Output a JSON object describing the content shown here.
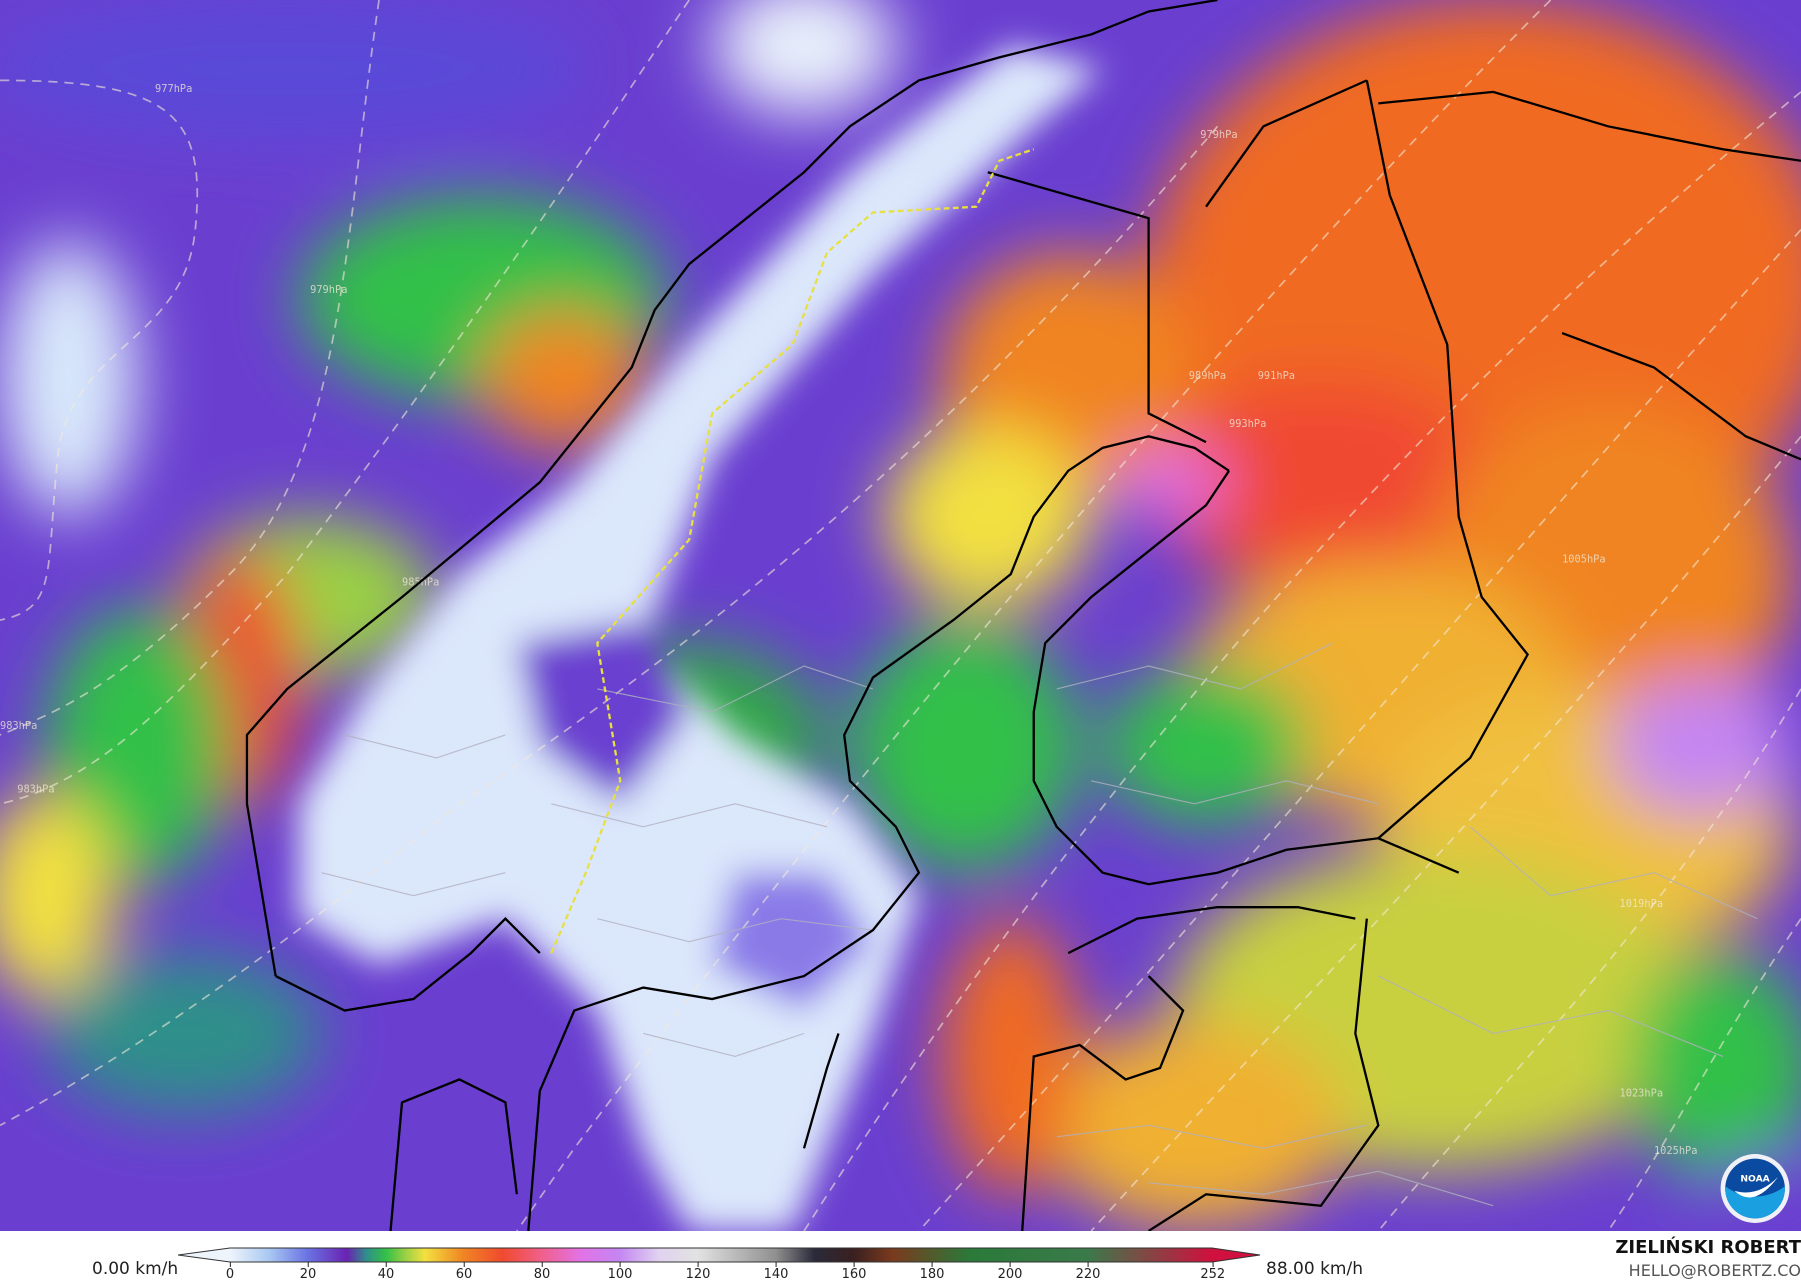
{
  "map": {
    "isobar_labels": [
      "977hPa",
      "979hPa",
      "979hPa",
      "983hPa",
      "983hPa",
      "985hPa",
      "989hPa",
      "991hPa",
      "993hPa",
      "1005hPa",
      "1019hPa",
      "1023hPa",
      "1025hPa"
    ],
    "logo": "NOAA"
  },
  "legend": {
    "min_label": "0.00 km/h",
    "max_label": "88.00 km/h",
    "ticks": [
      "0",
      "20",
      "40",
      "60",
      "80",
      "100",
      "120",
      "140",
      "160",
      "180",
      "200",
      "220",
      "252"
    ],
    "colors": {
      "0": "#eef4fc",
      "10": "#a9c8f2",
      "20": "#6a72e2",
      "30": "#6a22b2",
      "35": "#2f8f8a",
      "40": "#33c048",
      "45": "#9ad044",
      "50": "#f2e040",
      "60": "#f08422",
      "70": "#f04a30",
      "80": "#f0608a",
      "90": "#e272e6",
      "100": "#c486f2",
      "110": "#e0d2f0",
      "120": "#e2e2e2",
      "140": "#909090",
      "150": "#2a2a3a",
      "160": "#3a2020",
      "170": "#7a3a1e",
      "190": "#2a7a3a",
      "220": "#3a7a4a",
      "252": "#d0103e"
    }
  },
  "credits": {
    "author": "ZIELIŃSKI ROBERT",
    "email": "HELLO@ROBERTZ.CO"
  }
}
